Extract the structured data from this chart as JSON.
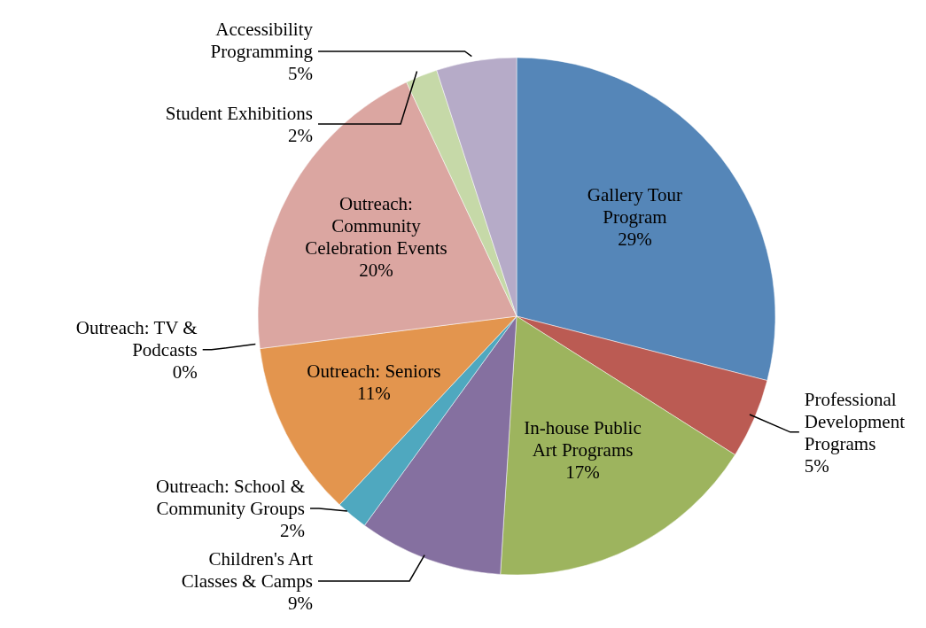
{
  "chart_data": {
    "type": "pie",
    "categories": [
      "Gallery Tour Program",
      "Professional Development Programs",
      "In-house Public Art Programs",
      "Children's Art Classes & Camps",
      "Outreach: School & Community Groups",
      "Outreach: Seniors",
      "Outreach: TV & Podcasts",
      "Outreach: Community Celebration Events",
      "Student Exhibitions",
      "Accessibility Programming"
    ],
    "values": [
      29,
      5,
      17,
      9,
      2,
      11,
      0,
      20,
      2,
      5
    ],
    "colors": [
      "#5586b8",
      "#bb5b53",
      "#9db45e",
      "#8570a0",
      "#4fa8bf",
      "#e3954e",
      "#3f6a96",
      "#dba6a1",
      "#c6d9a8",
      "#b6abc8"
    ],
    "value_labels": [
      "29%",
      "5%",
      "17%",
      "9%",
      "2%",
      "11%",
      "0%",
      "20%",
      "2%",
      "5%"
    ]
  }
}
